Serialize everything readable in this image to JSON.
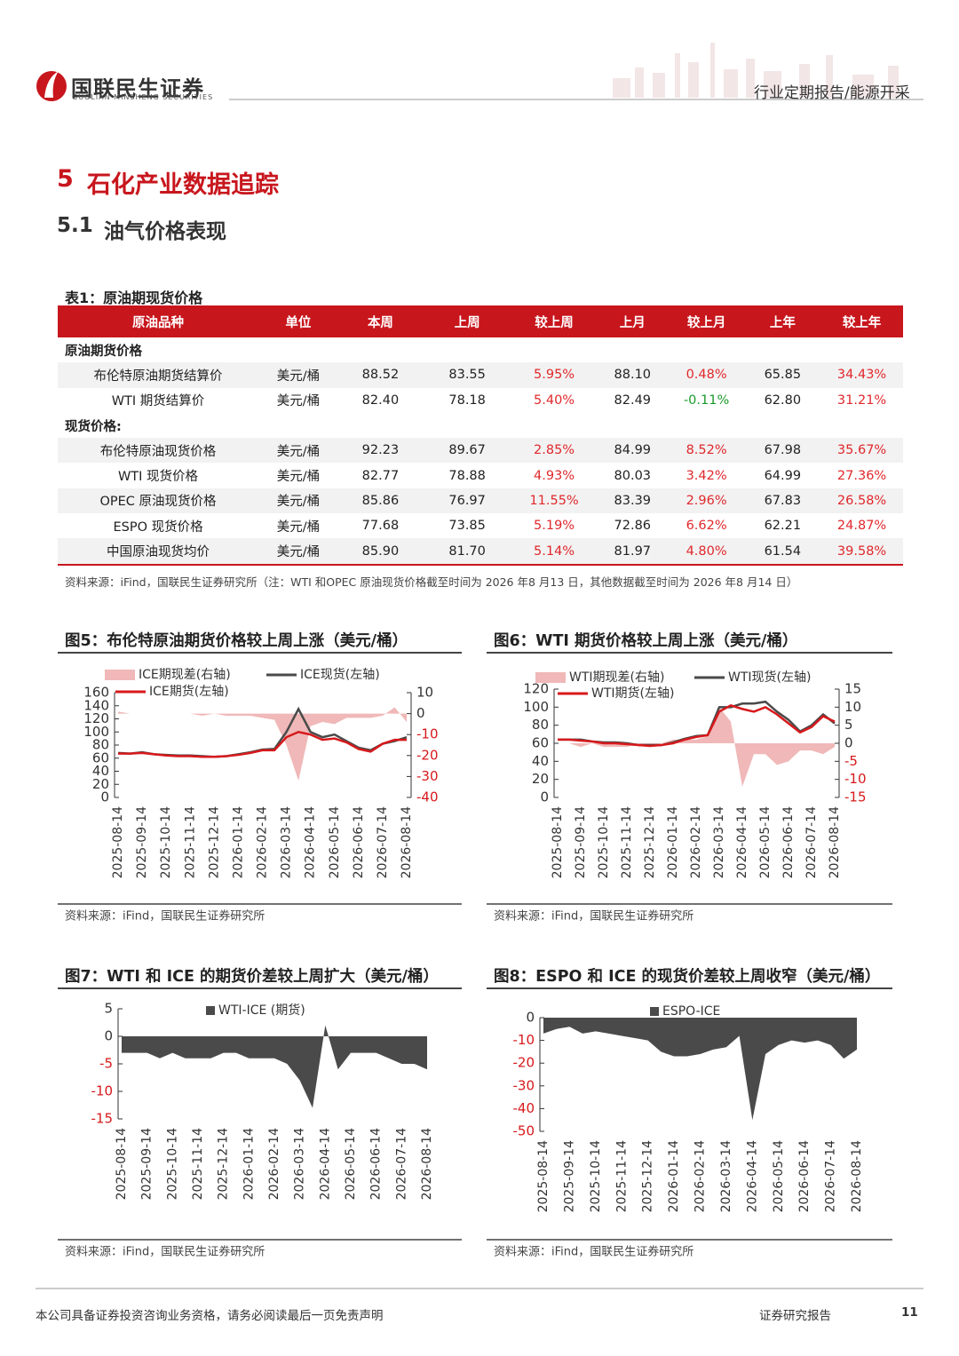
{
  "header": {
    "company": "国联民生证券",
    "company_en": "GUOLIAN MINSHENG SECURITIES",
    "report_type": "行业定期报告/能源开采"
  },
  "section": {
    "number": "5",
    "title": "石化产业数据追踪"
  },
  "subsection": {
    "number": "5.1",
    "title": "油气价格表现"
  },
  "table": {
    "title": "表1：原油期现货价格",
    "columns": [
      "原油品种",
      "单位",
      "本周",
      "上周",
      "较上周",
      "上月",
      "较上月",
      "上年",
      "较上年"
    ],
    "groups": [
      {
        "label": "原油期货价格",
        "rows": [
          [
            "布伦特原油期货结算价",
            "美元/桶",
            "88.52",
            "83.55",
            "5.95%",
            "88.10",
            "0.48%",
            "65.85",
            "34.43%"
          ],
          [
            "WTI 期货结算价",
            "美元/桶",
            "82.40",
            "78.18",
            "5.40%",
            "82.49",
            "-0.11%",
            "62.80",
            "31.21%"
          ]
        ]
      },
      {
        "label": "现货价格:",
        "rows": [
          [
            "布伦特原油现货价格",
            "美元/桶",
            "92.23",
            "89.67",
            "2.85%",
            "84.99",
            "8.52%",
            "67.98",
            "35.67%"
          ],
          [
            "WTI 现货价格",
            "美元/桶",
            "82.77",
            "78.88",
            "4.93%",
            "80.03",
            "3.42%",
            "64.99",
            "27.36%"
          ],
          [
            "OPEC 原油现货价格",
            "美元/桶",
            "85.86",
            "76.97",
            "11.55%",
            "83.39",
            "2.96%",
            "67.83",
            "26.58%"
          ],
          [
            "ESPO 现货价格",
            "美元/桶",
            "77.68",
            "73.85",
            "5.19%",
            "72.86",
            "6.62%",
            "62.21",
            "24.87%"
          ],
          [
            "中国原油现货均价",
            "美元/桶",
            "85.90",
            "81.70",
            "5.14%",
            "81.97",
            "4.80%",
            "61.54",
            "39.58%"
          ]
        ]
      }
    ],
    "source": "资料来源：iFind，国联民生证券研究所（注：WTI 和OPEC 原油现货价格截至时间为 2026 年8 月13 日，其他数据截至时间为 2026 年8 月14 日）"
  },
  "chart_data": [
    {
      "type": "line",
      "title": "图5：布伦特原油期货价格较上周上涨（美元/桶）",
      "source": "资料来源：iFind，国联民生证券研究所",
      "categories": [
        "2025-08-14",
        null,
        "2025-09-14",
        null,
        "2025-10-14",
        null,
        "2025-11-14",
        null,
        "2025-12-14",
        null,
        "2026-01-14",
        null,
        "2026-02-14",
        null,
        "2026-03-14",
        null,
        "2026-04-14",
        null,
        "2026-05-14",
        null,
        "2026-06-14",
        null,
        "2026-07-14",
        null,
        "2026-08-14"
      ],
      "ylim": [
        0,
        160
      ],
      "yticks": [
        0,
        20,
        40,
        60,
        80,
        100,
        120,
        140,
        160
      ],
      "y2lim": [
        -40,
        10
      ],
      "y2ticks": [
        -40,
        -30,
        -20,
        -10,
        0,
        10
      ],
      "series": [
        {
          "name": "ICE期现差(右轴)",
          "type": "area",
          "axis": "y2",
          "color": "#f0b8b8",
          "values": [
            1,
            0,
            0,
            0,
            0,
            0,
            0,
            -1,
            0,
            -1,
            -1,
            -1,
            -2,
            -3,
            -15,
            -32,
            -6,
            -4,
            -5,
            -2,
            -2,
            -2,
            -1,
            3,
            -4
          ]
        },
        {
          "name": "ICE现货(左轴)",
          "color": "#4a4a4a",
          "values": [
            68,
            67,
            69,
            66,
            65,
            64,
            64,
            63,
            62,
            63,
            66,
            69,
            73,
            74,
            100,
            135,
            100,
            92,
            96,
            86,
            76,
            72,
            82,
            86,
            92
          ]
        },
        {
          "name": "ICE期货(左轴)",
          "color": "#d7191c",
          "values": [
            67,
            67,
            68,
            66,
            64,
            63,
            63,
            62,
            62,
            63,
            65,
            68,
            72,
            72,
            92,
            100,
            96,
            88,
            90,
            84,
            74,
            70,
            82,
            88,
            88
          ]
        }
      ]
    },
    {
      "type": "line",
      "title": "图6：WTI 期货价格较上周上涨（美元/桶）",
      "source": "资料来源：iFind，国联民生证券研究所",
      "categories": [
        "2025-08-14",
        null,
        "2025-09-14",
        null,
        "2025-10-14",
        null,
        "2025-11-14",
        null,
        "2025-12-14",
        null,
        "2026-01-14",
        null,
        "2026-02-14",
        null,
        "2026-03-14",
        null,
        "2026-04-14",
        null,
        "2026-05-14",
        null,
        "2026-06-14",
        null,
        "2026-07-14",
        null,
        "2026-08-14"
      ],
      "ylim": [
        0,
        120
      ],
      "yticks": [
        0,
        20,
        40,
        60,
        80,
        100,
        120
      ],
      "y2lim": [
        -15,
        15
      ],
      "y2ticks": [
        -15,
        -10,
        -5,
        0,
        5,
        10,
        15
      ],
      "series": [
        {
          "name": "WTI期现差(右轴)",
          "type": "area",
          "axis": "y2",
          "color": "#f0b8b8",
          "values": [
            0,
            0,
            -1,
            0,
            -1,
            -1,
            -1,
            0,
            -1,
            0,
            1,
            1,
            1,
            2,
            10,
            6,
            -12,
            -3,
            -3,
            -6,
            -5,
            -2,
            -2,
            -3,
            -1
          ]
        },
        {
          "name": "WTI现货(左轴)",
          "color": "#4a4a4a",
          "values": [
            64,
            64,
            64,
            62,
            61,
            61,
            60,
            58,
            58,
            58,
            61,
            65,
            68,
            69,
            100,
            100,
            104,
            104,
            106,
            95,
            86,
            73,
            80,
            92,
            82
          ]
        },
        {
          "name": "WTI期货(左轴)",
          "color": "#d7191c",
          "values": [
            64,
            64,
            63,
            62,
            60,
            60,
            59,
            58,
            57,
            58,
            60,
            64,
            67,
            69,
            95,
            102,
            98,
            95,
            100,
            92,
            82,
            72,
            78,
            90,
            84
          ]
        }
      ]
    },
    {
      "type": "area",
      "title": "图7：WTI 和 ICE 的期货价差较上周扩大（美元/桶）",
      "source": "资料来源：iFind，国联民生证券研究所",
      "categories": [
        "2025-08-14",
        null,
        "2025-09-14",
        null,
        "2025-10-14",
        null,
        "2025-11-14",
        null,
        "2025-12-14",
        null,
        "2026-01-14",
        null,
        "2026-02-14",
        null,
        "2026-03-14",
        null,
        "2026-04-14",
        null,
        "2026-05-14",
        null,
        "2026-06-14",
        null,
        "2026-07-14",
        null,
        "2026-08-14"
      ],
      "ylim": [
        -15,
        5
      ],
      "yticks": [
        -15,
        -10,
        -5,
        0,
        5
      ],
      "series": [
        {
          "name": "WTI-ICE (期货)",
          "color": "#4a4a4a",
          "values": [
            -3,
            -3,
            -3,
            -4,
            -3,
            -4,
            -4,
            -4,
            -3,
            -3,
            -4,
            -4,
            -4,
            -5,
            -8,
            -13,
            2,
            -6,
            -3,
            -3,
            -3,
            -4,
            -5,
            -5,
            -6
          ]
        }
      ]
    },
    {
      "type": "area",
      "title": "图8：ESPO 和 ICE 的现货价差较上周收窄（美元/桶）",
      "source": "资料来源：iFind，国联民生证券研究所",
      "categories": [
        "2025-08-14",
        null,
        "2025-09-14",
        null,
        "2025-10-14",
        null,
        "2025-11-14",
        null,
        "2025-12-14",
        null,
        "2026-01-14",
        null,
        "2026-02-14",
        null,
        "2026-03-14",
        null,
        "2026-04-14",
        null,
        "2026-05-14",
        null,
        "2026-06-14",
        null,
        "2026-07-14",
        null,
        "2026-08-14"
      ],
      "ylim": [
        -50,
        0
      ],
      "yticks": [
        -50,
        -40,
        -30,
        -20,
        -10,
        0
      ],
      "series": [
        {
          "name": "ESPO-ICE",
          "color": "#4a4a4a",
          "values": [
            -7,
            -5,
            -4,
            -7,
            -6,
            -7,
            -8,
            -9,
            -10,
            -15,
            -17,
            -17,
            -16,
            -14,
            -13,
            -8,
            -45,
            -16,
            -12,
            -10,
            -11,
            -10,
            -12,
            -18,
            -14
          ]
        }
      ]
    }
  ],
  "footer": {
    "disclaimer": "本公司具备证券投资咨询业务资格，请务必阅读最后一页免责声明",
    "label": "证券研究报告",
    "page": "11"
  }
}
